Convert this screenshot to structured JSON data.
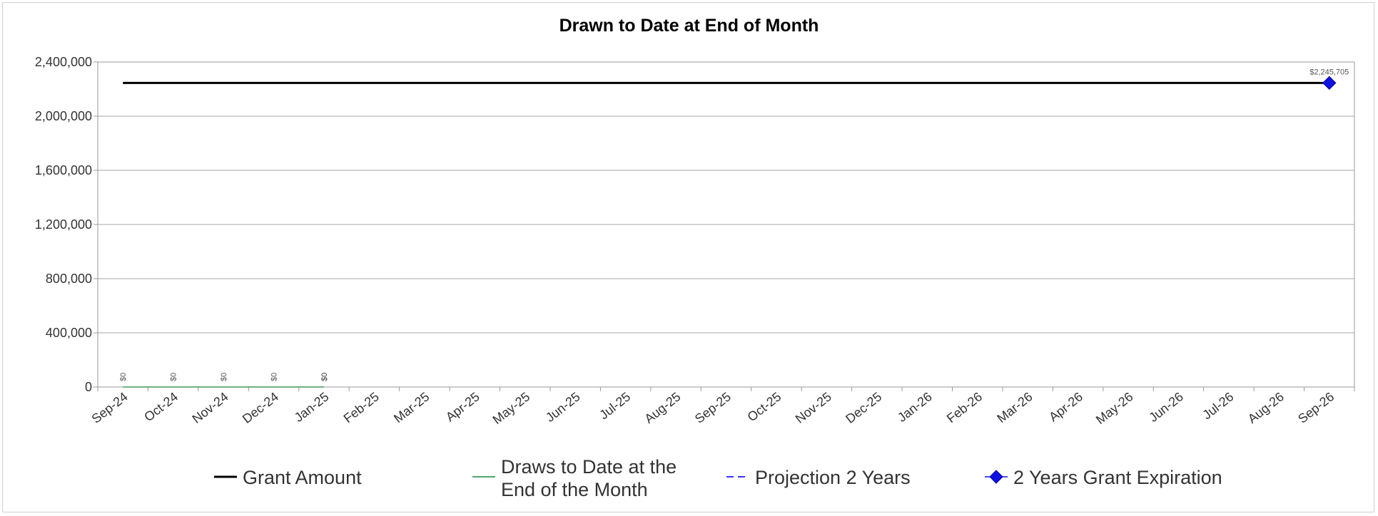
{
  "chart_data": {
    "type": "line",
    "title": "Drawn to Date at End of Month",
    "xlabel": "",
    "ylabel": "",
    "categories": [
      "Sep-24",
      "Oct-24",
      "Nov-24",
      "Dec-24",
      "Jan-25",
      "Feb-25",
      "Mar-25",
      "Apr-25",
      "May-25",
      "Jun-25",
      "Jul-25",
      "Aug-25",
      "Sep-25",
      "Oct-25",
      "Nov-25",
      "Dec-25",
      "Jan-26",
      "Feb-26",
      "Mar-26",
      "Apr-26",
      "May-26",
      "Jun-26",
      "Jul-26",
      "Aug-26",
      "Sep-26"
    ],
    "ylim": [
      0,
      2400000
    ],
    "yticks": [
      0,
      400000,
      800000,
      1200000,
      1600000,
      2000000,
      2400000
    ],
    "ytick_labels": [
      "0",
      "400,000",
      "800,000",
      "1,200,000",
      "1,600,000",
      "2,000,000",
      "2,400,000"
    ],
    "grid": true,
    "legend_position": "bottom",
    "series": [
      {
        "name": "Grant Amount",
        "color": "#000000",
        "style": "solid",
        "values": [
          2245705,
          2245705,
          2245705,
          2245705,
          2245705,
          2245705,
          2245705,
          2245705,
          2245705,
          2245705,
          2245705,
          2245705,
          2245705,
          2245705,
          2245705,
          2245705,
          2245705,
          2245705,
          2245705,
          2245705,
          2245705,
          2245705,
          2245705,
          2245705,
          2245705
        ]
      },
      {
        "name": "Draws to Date at the End of the Month",
        "color": "#3a9a5a",
        "style": "solid",
        "values": [
          0,
          0,
          0,
          0,
          0,
          null,
          null,
          null,
          null,
          null,
          null,
          null,
          null,
          null,
          null,
          null,
          null,
          null,
          null,
          null,
          null,
          null,
          null,
          null,
          null
        ],
        "data_labels": [
          "$0",
          "$0",
          "$0",
          "$0",
          "$0"
        ]
      },
      {
        "name": "Projection 2 Years",
        "color": "#1a1aff",
        "style": "dashed",
        "values": [
          null,
          null,
          null,
          null,
          0,
          null,
          null,
          null,
          null,
          null,
          null,
          null,
          null,
          null,
          null,
          null,
          null,
          null,
          null,
          null,
          null,
          null,
          null,
          null,
          null
        ],
        "data_labels": [
          "$0"
        ]
      },
      {
        "name": "2 Years Grant Expiration",
        "color": "#1010e0",
        "style": "marker",
        "marker": "diamond",
        "points": [
          {
            "x": "Sep-26",
            "y": 2245705
          }
        ],
        "data_labels": [
          "$2,245,705"
        ]
      }
    ],
    "legend": {
      "items": [
        {
          "lines": [
            "Grant Amount"
          ]
        },
        {
          "lines": [
            "Draws to Date at the",
            "End of the Month"
          ]
        },
        {
          "lines": [
            "Projection 2 Years"
          ]
        },
        {
          "lines": [
            "2 Years Grant Expiration"
          ]
        }
      ]
    }
  }
}
